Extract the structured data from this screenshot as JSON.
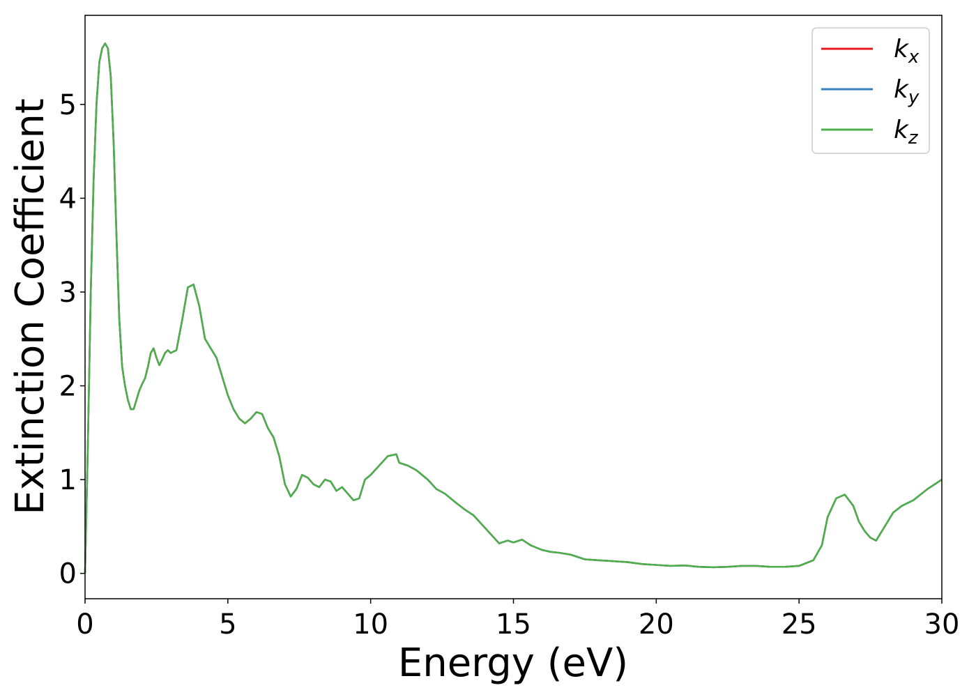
{
  "chart_data": {
    "type": "line",
    "title": "",
    "xlabel": "Energy (eV)",
    "ylabel": "Extinction Coefficient",
    "xlim": [
      0,
      30
    ],
    "ylim": [
      -0.27,
      5.95
    ],
    "xticks": [
      0,
      5,
      10,
      15,
      20,
      25,
      30
    ],
    "yticks": [
      0,
      1,
      2,
      3,
      4,
      5
    ],
    "grid": false,
    "legend_position": "top-right",
    "x": [
      0,
      0.1,
      0.2,
      0.3,
      0.4,
      0.5,
      0.6,
      0.7,
      0.8,
      0.9,
      1.0,
      1.1,
      1.2,
      1.3,
      1.4,
      1.5,
      1.6,
      1.7,
      1.8,
      1.9,
      2.0,
      2.1,
      2.2,
      2.3,
      2.4,
      2.5,
      2.6,
      2.7,
      2.8,
      2.9,
      3.0,
      3.2,
      3.4,
      3.6,
      3.8,
      4.0,
      4.2,
      4.4,
      4.6,
      4.8,
      5.0,
      5.2,
      5.4,
      5.6,
      5.8,
      6.0,
      6.2,
      6.4,
      6.6,
      6.8,
      7.0,
      7.2,
      7.4,
      7.6,
      7.8,
      8.0,
      8.2,
      8.4,
      8.6,
      8.8,
      9.0,
      9.2,
      9.4,
      9.6,
      9.8,
      10.0,
      10.3,
      10.6,
      10.9,
      11.0,
      11.3,
      11.6,
      12.0,
      12.3,
      12.6,
      13.0,
      13.3,
      13.6,
      13.9,
      14.2,
      14.5,
      14.8,
      15.0,
      15.3,
      15.6,
      16.0,
      16.3,
      16.6,
      17.0,
      17.5,
      18.0,
      18.5,
      19.0,
      19.5,
      20.0,
      20.5,
      21.0,
      21.5,
      22.0,
      22.5,
      23.0,
      23.5,
      24.0,
      24.5,
      25.0,
      25.5,
      25.8,
      26.0,
      26.3,
      26.6,
      26.9,
      27.1,
      27.3,
      27.5,
      27.7,
      27.9,
      28.1,
      28.3,
      28.6,
      29.0,
      29.5,
      30.0
    ],
    "series": [
      {
        "name": "k_x",
        "color": "#e41a1c",
        "values": [
          0.0,
          1.4,
          3.0,
          4.2,
          5.0,
          5.45,
          5.6,
          5.65,
          5.6,
          5.3,
          4.6,
          3.6,
          2.7,
          2.2,
          2.0,
          1.85,
          1.75,
          1.75,
          1.85,
          1.95,
          2.02,
          2.08,
          2.2,
          2.35,
          2.4,
          2.3,
          2.22,
          2.28,
          2.35,
          2.38,
          2.35,
          2.38,
          2.7,
          3.05,
          3.08,
          2.85,
          2.5,
          2.4,
          2.3,
          2.1,
          1.9,
          1.75,
          1.65,
          1.6,
          1.65,
          1.72,
          1.7,
          1.55,
          1.45,
          1.25,
          0.95,
          0.82,
          0.9,
          1.05,
          1.02,
          0.95,
          0.92,
          1.0,
          0.98,
          0.88,
          0.92,
          0.85,
          0.78,
          0.8,
          1.0,
          1.05,
          1.15,
          1.25,
          1.27,
          1.18,
          1.15,
          1.1,
          1.0,
          0.9,
          0.85,
          0.75,
          0.68,
          0.62,
          0.52,
          0.42,
          0.32,
          0.35,
          0.33,
          0.36,
          0.3,
          0.25,
          0.23,
          0.22,
          0.2,
          0.15,
          0.14,
          0.13,
          0.12,
          0.1,
          0.09,
          0.08,
          0.085,
          0.07,
          0.065,
          0.07,
          0.08,
          0.08,
          0.07,
          0.07,
          0.08,
          0.14,
          0.3,
          0.6,
          0.8,
          0.84,
          0.72,
          0.55,
          0.45,
          0.38,
          0.35,
          0.45,
          0.55,
          0.65,
          0.72,
          0.78,
          0.9,
          1.0
        ]
      },
      {
        "name": "k_y",
        "color": "#377eb8",
        "values": [
          0.0,
          1.4,
          3.0,
          4.2,
          5.0,
          5.45,
          5.6,
          5.65,
          5.6,
          5.3,
          4.6,
          3.6,
          2.7,
          2.2,
          2.0,
          1.85,
          1.75,
          1.75,
          1.85,
          1.95,
          2.02,
          2.08,
          2.2,
          2.35,
          2.4,
          2.3,
          2.22,
          2.28,
          2.35,
          2.38,
          2.35,
          2.38,
          2.7,
          3.05,
          3.08,
          2.85,
          2.5,
          2.4,
          2.3,
          2.1,
          1.9,
          1.75,
          1.65,
          1.6,
          1.65,
          1.72,
          1.7,
          1.55,
          1.45,
          1.25,
          0.95,
          0.82,
          0.9,
          1.05,
          1.02,
          0.95,
          0.92,
          1.0,
          0.98,
          0.88,
          0.92,
          0.85,
          0.78,
          0.8,
          1.0,
          1.05,
          1.15,
          1.25,
          1.27,
          1.18,
          1.15,
          1.1,
          1.0,
          0.9,
          0.85,
          0.75,
          0.68,
          0.62,
          0.52,
          0.42,
          0.32,
          0.35,
          0.33,
          0.36,
          0.3,
          0.25,
          0.23,
          0.22,
          0.2,
          0.15,
          0.14,
          0.13,
          0.12,
          0.1,
          0.09,
          0.08,
          0.085,
          0.07,
          0.065,
          0.07,
          0.08,
          0.08,
          0.07,
          0.07,
          0.08,
          0.14,
          0.3,
          0.6,
          0.8,
          0.84,
          0.72,
          0.55,
          0.45,
          0.38,
          0.35,
          0.45,
          0.55,
          0.65,
          0.72,
          0.78,
          0.9,
          1.0
        ]
      },
      {
        "name": "k_z",
        "color": "#4daf4a",
        "values": [
          0.0,
          1.4,
          3.0,
          4.2,
          5.0,
          5.45,
          5.6,
          5.65,
          5.6,
          5.3,
          4.6,
          3.6,
          2.7,
          2.2,
          2.0,
          1.85,
          1.75,
          1.75,
          1.85,
          1.95,
          2.02,
          2.08,
          2.2,
          2.35,
          2.4,
          2.3,
          2.22,
          2.28,
          2.35,
          2.38,
          2.35,
          2.38,
          2.7,
          3.05,
          3.08,
          2.85,
          2.5,
          2.4,
          2.3,
          2.1,
          1.9,
          1.75,
          1.65,
          1.6,
          1.65,
          1.72,
          1.7,
          1.55,
          1.45,
          1.25,
          0.95,
          0.82,
          0.9,
          1.05,
          1.02,
          0.95,
          0.92,
          1.0,
          0.98,
          0.88,
          0.92,
          0.85,
          0.78,
          0.8,
          1.0,
          1.05,
          1.15,
          1.25,
          1.27,
          1.18,
          1.15,
          1.1,
          1.0,
          0.9,
          0.85,
          0.75,
          0.68,
          0.62,
          0.52,
          0.42,
          0.32,
          0.35,
          0.33,
          0.36,
          0.3,
          0.25,
          0.23,
          0.22,
          0.2,
          0.15,
          0.14,
          0.13,
          0.12,
          0.1,
          0.09,
          0.08,
          0.085,
          0.07,
          0.065,
          0.07,
          0.08,
          0.08,
          0.07,
          0.07,
          0.08,
          0.14,
          0.3,
          0.6,
          0.8,
          0.84,
          0.72,
          0.55,
          0.45,
          0.38,
          0.35,
          0.45,
          0.55,
          0.65,
          0.72,
          0.78,
          0.9,
          1.0
        ]
      }
    ],
    "legend": [
      {
        "base": "k",
        "sub": "x",
        "color": "#e41a1c"
      },
      {
        "base": "k",
        "sub": "y",
        "color": "#377eb8"
      },
      {
        "base": "k",
        "sub": "z",
        "color": "#4daf4a"
      }
    ]
  }
}
